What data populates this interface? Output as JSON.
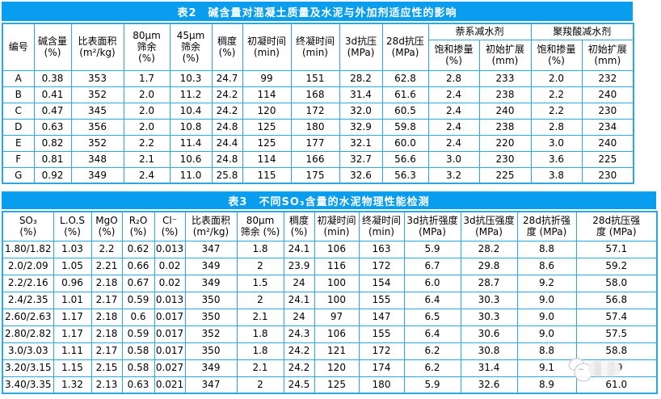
{
  "colors": {
    "title_bar": "#089DEE",
    "grid_line": "#2BA8E0",
    "title_text": "#ffffff",
    "cell_text": "#000000"
  },
  "table2": {
    "title": "表2　碱含量对混凝土质量及水泥与外加剂适应性的影响",
    "columns": [
      "编号",
      "碱含量\n(%)",
      "比表面积\n(m²/kg)",
      "80μm\n筛余\n(%)",
      "45μm\n筛余\n(%)",
      "稠度\n(%)",
      "初凝时间\n(min)",
      "终凝时间\n(min)",
      "3d抗压\n(MPa)",
      "28d抗压\n(MPa)"
    ],
    "groups": [
      {
        "label": "萘系减水剂",
        "sub": [
          "饱和掺量\n(%)",
          "初始扩展\n(mm)"
        ]
      },
      {
        "label": "聚羧酸减水剂",
        "sub": [
          "饱和掺量\n(%)",
          "初始扩展\n(mm)"
        ]
      }
    ],
    "rows": [
      [
        "A",
        "0.38",
        "353",
        "1.7",
        "10.3",
        "24.7",
        "99",
        "151",
        "28.2",
        "62.8",
        "2.8",
        "233",
        "2.0",
        "232"
      ],
      [
        "B",
        "0.41",
        "352",
        "2.0",
        "11.2",
        "24.2",
        "114",
        "168",
        "31.4",
        "61.6",
        "2.4",
        "238",
        "2.2",
        "240"
      ],
      [
        "C",
        "0.47",
        "345",
        "2.0",
        "10.4",
        "24.2",
        "120",
        "172",
        "32.0",
        "60.5",
        "2.4",
        "240",
        "2.2",
        "230"
      ],
      [
        "D",
        "0.63",
        "356",
        "2.0",
        "10.8",
        "24.8",
        "125",
        "180",
        "32.9",
        "59.8",
        "2.4",
        "238",
        "2.8",
        "234"
      ],
      [
        "E",
        "0.82",
        "352",
        "2.2",
        "11.4",
        "24.4",
        "125",
        "177",
        "32.1",
        "60.0",
        "2.4",
        "220",
        "3.0",
        "240"
      ],
      [
        "F",
        "0.81",
        "348",
        "2.1",
        "10.6",
        "24.8",
        "114",
        "166",
        "32.7",
        "56.6",
        "3.0",
        "230",
        "3.6",
        "225"
      ],
      [
        "G",
        "0.92",
        "349",
        "2.4",
        "11.0",
        "25.8",
        "115",
        "175",
        "32.6",
        "56.3",
        "3.2",
        "225",
        "3.8",
        "230"
      ]
    ]
  },
  "table3": {
    "title": "表3　不同SO₃含量的水泥物理性能检测",
    "columns": [
      "SO₃\n(%)",
      "L.O.S\n(%)",
      "MgO\n(%)",
      "R₂O\n(%)",
      "Cl⁻\n(%)",
      "比表面积\n(m²/kg)",
      "80μm\n筛余 (%)",
      "稠度\n(%)",
      "初凝时间\n(min)",
      "终凝时间\n(min)",
      "3d抗折强度\n(MPa)",
      "3d抗压强度\n(MPa)",
      "28d抗折强\n度 (MPa)",
      "28d抗压强\n度 (MPa)"
    ],
    "rows": [
      [
        "1.80/1.82",
        "1.03",
        "2.2",
        "0.62",
        "0.013",
        "347",
        "1.8",
        "24.1",
        "106",
        "163",
        "5.9",
        "28.2",
        "8.8",
        "57.1"
      ],
      [
        "2.0/2.09",
        "1.05",
        "2.21",
        "0.66",
        "0.02",
        "349",
        "2",
        "23.9",
        "116",
        "172",
        "6.7",
        "29.8",
        "8.6",
        "59.2"
      ],
      [
        "2.2/2.16",
        "0.96",
        "2.18",
        "0.67",
        "0.02",
        "349",
        "1.5",
        "24",
        "100",
        "154",
        "6.0",
        "28.7",
        "9.2",
        "58.0"
      ],
      [
        "2.4/2.35",
        "1.01",
        "2.17",
        "0.59",
        "0.013",
        "350",
        "2",
        "24.1",
        "100",
        "155",
        "6.4",
        "30.3",
        "9.0",
        "56.8"
      ],
      [
        "2.60/2.63",
        "1.17",
        "2.18",
        "0.6",
        "0.017",
        "350",
        "2.1",
        "24",
        "97",
        "147",
        "6.5",
        "30.3",
        "9.0",
        "57.4"
      ],
      [
        "2.80/2.82",
        "1.17",
        "2.18",
        "0.59",
        "0.017",
        "352",
        "1.8",
        "24.3",
        "106",
        "155",
        "6.4",
        "30.6",
        "9.0",
        "57.5"
      ],
      [
        "3.0/3.03",
        "1.11",
        "2.17",
        "0.58",
        "0.017",
        "350",
        "1.8",
        "24.2",
        "121",
        "172",
        "6.2",
        "30.8",
        "8.8",
        "58.8"
      ],
      [
        "3.20/3.15",
        "1.15",
        "2.15",
        "0.58",
        "0.027",
        "349",
        "2.1",
        "24.2",
        "120",
        "174",
        "6.2",
        "31.4",
        "9.1",
        "59"
      ],
      [
        "3.40/3.35",
        "1.32",
        "2.13",
        "0.63",
        "0.021",
        "347",
        "2",
        "24.5",
        "125",
        "180",
        "5.9",
        "32.6",
        "8.9",
        "61.0"
      ]
    ]
  }
}
